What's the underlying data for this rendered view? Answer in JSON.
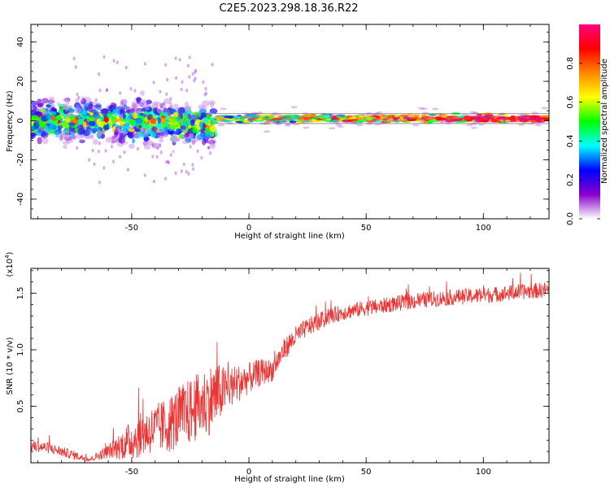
{
  "title": "C2E5.2023.298.18.36.R22",
  "chart_data": [
    {
      "type": "heatmap",
      "title": "C2E5.2023.298.18.36.R22",
      "xlabel": "Height of straight line (km)",
      "ylabel": "Frequency (Hz)",
      "xlim": [
        -93,
        128
      ],
      "ylim": [
        -50,
        49
      ],
      "xticks": [
        -50,
        0,
        50,
        100
      ],
      "yticks": [
        -40,
        -20,
        0,
        20,
        40
      ],
      "colorbar": {
        "label": "Normalized spectral amplitude",
        "range": [
          0,
          1
        ],
        "ticks": [
          0.0,
          0.2,
          0.4,
          0.6,
          0.8
        ],
        "colors": [
          "#ffffff",
          "#8800cc",
          "#0000ff",
          "#00ffff",
          "#00ff00",
          "#ffff00",
          "#ff8800",
          "#ff0000",
          "#ff0080"
        ]
      },
      "features": [
        {
          "description": "broad scattered band",
          "x_range": [
            -93,
            -15
          ],
          "freq_center": 0,
          "freq_spread": 12
        },
        {
          "description": "narrow band along 0-1 Hz",
          "x_range": [
            -15,
            128
          ],
          "freq_center": 1,
          "freq_spread": 2
        }
      ]
    },
    {
      "type": "line",
      "xlabel": "Height of straight line (km)",
      "ylabel": "SNR (10 * v/v)",
      "multiplier": "(x10",
      "multiplier_exp": "4",
      "xlim": [
        -93,
        128
      ],
      "ylim": [
        0,
        1.72
      ],
      "xticks": [
        -50,
        0,
        50,
        100
      ],
      "yticks": [
        0.5,
        1.0,
        1.5
      ],
      "ytick_labels": [
        "0.5",
        "1.0",
        "1.5"
      ],
      "series": [
        {
          "name": "SNR",
          "color": "#ee3333",
          "x": [
            -93,
            -85,
            -75,
            -68,
            -60,
            -50,
            -45,
            -40,
            -35,
            -30,
            -25,
            -20,
            -15,
            -10,
            -5,
            0,
            5,
            10,
            15,
            20,
            25,
            30,
            35,
            40,
            45,
            50,
            55,
            60,
            70,
            80,
            90,
            100,
            110,
            120,
            128
          ],
          "y": [
            0.15,
            0.13,
            0.07,
            0.03,
            0.1,
            0.2,
            0.26,
            0.3,
            0.33,
            0.4,
            0.45,
            0.52,
            0.58,
            0.65,
            0.7,
            0.75,
            0.8,
            0.82,
            1.0,
            1.12,
            1.2,
            1.25,
            1.3,
            1.33,
            1.35,
            1.37,
            1.38,
            1.4,
            1.43,
            1.45,
            1.47,
            1.48,
            1.5,
            1.52,
            1.53
          ],
          "noise": [
            0.05,
            0.05,
            0.04,
            0.02,
            0.06,
            0.18,
            0.2,
            0.22,
            0.25,
            0.28,
            0.3,
            0.3,
            0.32,
            0.2,
            0.17,
            0.14,
            0.12,
            0.1,
            0.1,
            0.09,
            0.08,
            0.08,
            0.07,
            0.07,
            0.07,
            0.07,
            0.07,
            0.07,
            0.07,
            0.07,
            0.07,
            0.07,
            0.07,
            0.07,
            0.07
          ]
        }
      ]
    }
  ]
}
